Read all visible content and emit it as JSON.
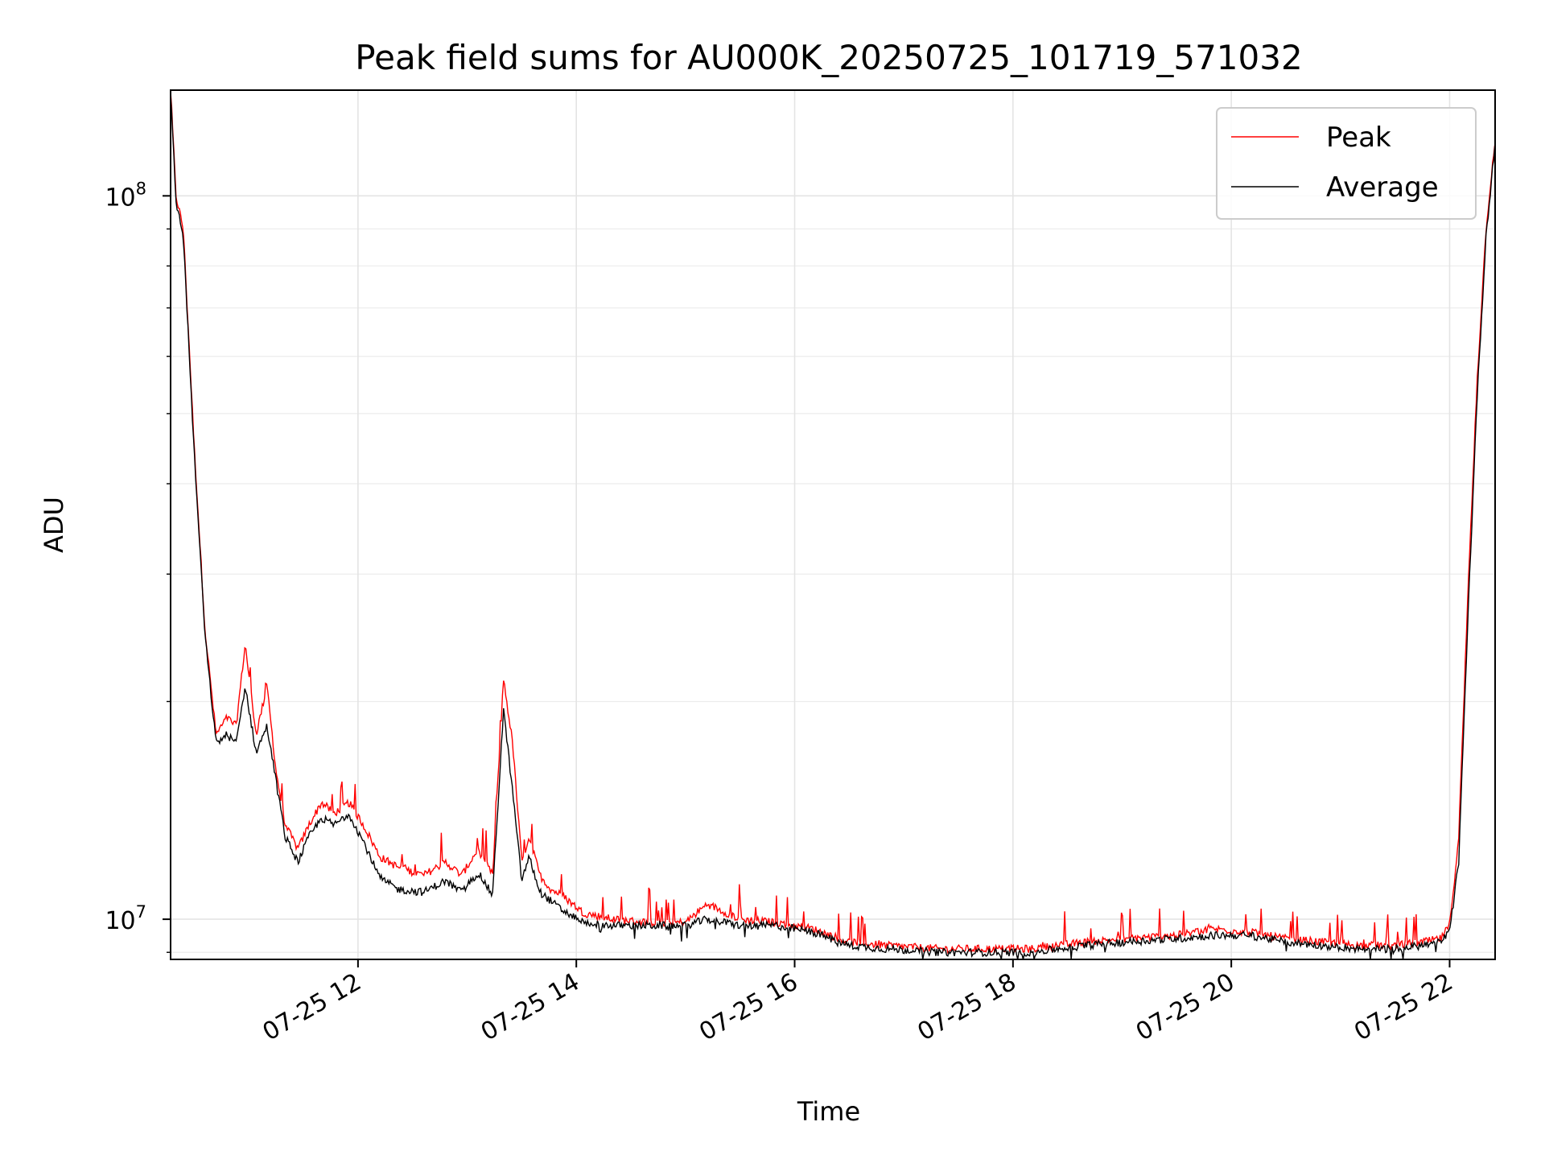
{
  "chart_data": {
    "type": "line",
    "title": "Peak field sums for AU000K_20250725_101719_571032",
    "xlabel": "Time",
    "ylabel": "ADU",
    "y_scale": "log",
    "ylim": [
      8800000,
      140000000
    ],
    "xlim": [
      "2025-07-25 10:17",
      "2025-07-25 22:25"
    ],
    "x_tick_labels": [
      {
        "t": "2025-07-25 12:00",
        "label": "07-25 12"
      },
      {
        "t": "2025-07-25 14:00",
        "label": "07-25 14"
      },
      {
        "t": "2025-07-25 16:00",
        "label": "07-25 16"
      },
      {
        "t": "2025-07-25 18:00",
        "label": "07-25 18"
      },
      {
        "t": "2025-07-25 20:00",
        "label": "07-25 20"
      },
      {
        "t": "2025-07-25 22:00",
        "label": "07-25 22"
      }
    ],
    "y_tick_labels": [
      {
        "value": 10000000,
        "base": "10",
        "exp": "7"
      },
      {
        "value": 100000000,
        "base": "10",
        "exp": "8"
      }
    ],
    "grid": true,
    "legend": {
      "placement": "top-right"
    },
    "series": [
      {
        "name": "Peak",
        "color": "#ff0000",
        "x": [
          "2025-07-25 10:17",
          "2025-07-25 10:20",
          "2025-07-25 10:24",
          "2025-07-25 10:30",
          "2025-07-25 10:36",
          "2025-07-25 10:42",
          "2025-07-25 10:48",
          "2025-07-25 10:53",
          "2025-07-25 10:58",
          "2025-07-25 11:04",
          "2025-07-25 11:10",
          "2025-07-25 11:15",
          "2025-07-25 11:20",
          "2025-07-25 11:27",
          "2025-07-25 11:33",
          "2025-07-25 11:40",
          "2025-07-25 11:47",
          "2025-07-25 11:55",
          "2025-07-25 12:03",
          "2025-07-25 12:12",
          "2025-07-25 12:22",
          "2025-07-25 12:36",
          "2025-07-25 12:48",
          "2025-07-25 12:57",
          "2025-07-25 13:06",
          "2025-07-25 13:14",
          "2025-07-25 13:20",
          "2025-07-25 13:25",
          "2025-07-25 13:30",
          "2025-07-25 13:34",
          "2025-07-25 13:40",
          "2025-07-25 13:46",
          "2025-07-25 13:52",
          "2025-07-25 13:58",
          "2025-07-25 14:04",
          "2025-07-25 14:20",
          "2025-07-25 14:40",
          "2025-07-25 15:00",
          "2025-07-25 15:12",
          "2025-07-25 15:30",
          "2025-07-25 15:50",
          "2025-07-25 16:10",
          "2025-07-25 16:30",
          "2025-07-25 16:50",
          "2025-07-25 17:20",
          "2025-07-25 17:50",
          "2025-07-25 18:10",
          "2025-07-25 18:40",
          "2025-07-25 19:00",
          "2025-07-25 19:30",
          "2025-07-25 19:50",
          "2025-07-25 20:10",
          "2025-07-25 20:30",
          "2025-07-25 20:50",
          "2025-07-25 21:10",
          "2025-07-25 21:30",
          "2025-07-25 21:45",
          "2025-07-25 21:55",
          "2025-07-25 22:00",
          "2025-07-25 22:05",
          "2025-07-25 22:10",
          "2025-07-25 22:15",
          "2025-07-25 22:20",
          "2025-07-25 22:25"
        ],
        "y": [
          140000000,
          100000000,
          90000000,
          45000000,
          25000000,
          18000000,
          19000000,
          18500000,
          24000000,
          18000000,
          21000000,
          16000000,
          13500000,
          12500000,
          13500000,
          14500000,
          14000000,
          14500000,
          13500000,
          12200000,
          11800000,
          11500000,
          12000000,
          11500000,
          12500000,
          11500000,
          21500000,
          17500000,
          12000000,
          13000000,
          11500000,
          11000000,
          10800000,
          10500000,
          10200000,
          10000000,
          9900000,
          9900000,
          10500000,
          10000000,
          9900000,
          9700000,
          9300000,
          9200000,
          9100000,
          9100000,
          9100000,
          9300000,
          9400000,
          9500000,
          9700000,
          9600000,
          9400000,
          9300000,
          9200000,
          9200000,
          9300000,
          9400000,
          9800000,
          13000000,
          28000000,
          55000000,
          90000000,
          120000000
        ]
      },
      {
        "name": "Average",
        "color": "#000000",
        "x": [
          "2025-07-25 10:17",
          "2025-07-25 10:20",
          "2025-07-25 10:24",
          "2025-07-25 10:30",
          "2025-07-25 10:36",
          "2025-07-25 10:42",
          "2025-07-25 10:48",
          "2025-07-25 10:53",
          "2025-07-25 10:58",
          "2025-07-25 11:04",
          "2025-07-25 11:10",
          "2025-07-25 11:15",
          "2025-07-25 11:20",
          "2025-07-25 11:27",
          "2025-07-25 11:33",
          "2025-07-25 11:40",
          "2025-07-25 11:47",
          "2025-07-25 11:55",
          "2025-07-25 12:03",
          "2025-07-25 12:12",
          "2025-07-25 12:22",
          "2025-07-25 12:36",
          "2025-07-25 12:48",
          "2025-07-25 12:57",
          "2025-07-25 13:06",
          "2025-07-25 13:14",
          "2025-07-25 13:20",
          "2025-07-25 13:25",
          "2025-07-25 13:30",
          "2025-07-25 13:34",
          "2025-07-25 13:40",
          "2025-07-25 13:46",
          "2025-07-25 13:52",
          "2025-07-25 13:58",
          "2025-07-25 14:04",
          "2025-07-25 14:20",
          "2025-07-25 14:40",
          "2025-07-25 15:00",
          "2025-07-25 15:12",
          "2025-07-25 15:30",
          "2025-07-25 15:50",
          "2025-07-25 16:10",
          "2025-07-25 16:30",
          "2025-07-25 16:50",
          "2025-07-25 17:20",
          "2025-07-25 17:50",
          "2025-07-25 18:10",
          "2025-07-25 18:40",
          "2025-07-25 19:00",
          "2025-07-25 19:30",
          "2025-07-25 19:50",
          "2025-07-25 20:10",
          "2025-07-25 20:30",
          "2025-07-25 20:50",
          "2025-07-25 21:10",
          "2025-07-25 21:30",
          "2025-07-25 21:45",
          "2025-07-25 21:55",
          "2025-07-25 22:00",
          "2025-07-25 22:05",
          "2025-07-25 22:10",
          "2025-07-25 22:15",
          "2025-07-25 22:20",
          "2025-07-25 22:25"
        ],
        "y": [
          138000000,
          98000000,
          88000000,
          44000000,
          24500000,
          17500000,
          18000000,
          17500000,
          21000000,
          17000000,
          18500000,
          15500000,
          13000000,
          12000000,
          13000000,
          13800000,
          13500000,
          14000000,
          12800000,
          11400000,
          11000000,
          10900000,
          11300000,
          10900000,
          11600000,
          10800000,
          19500000,
          15000000,
          11300000,
          12200000,
          10900000,
          10600000,
          10300000,
          10100000,
          9900000,
          9800000,
          9800000,
          9800000,
          10000000,
          9800000,
          9800000,
          9600000,
          9200000,
          9100000,
          9000000,
          9000000,
          9000000,
          9200000,
          9300000,
          9400000,
          9500000,
          9500000,
          9300000,
          9200000,
          9100000,
          9100000,
          9200000,
          9300000,
          9600000,
          12000000,
          26000000,
          52000000,
          88000000,
          118000000
        ]
      }
    ]
  }
}
